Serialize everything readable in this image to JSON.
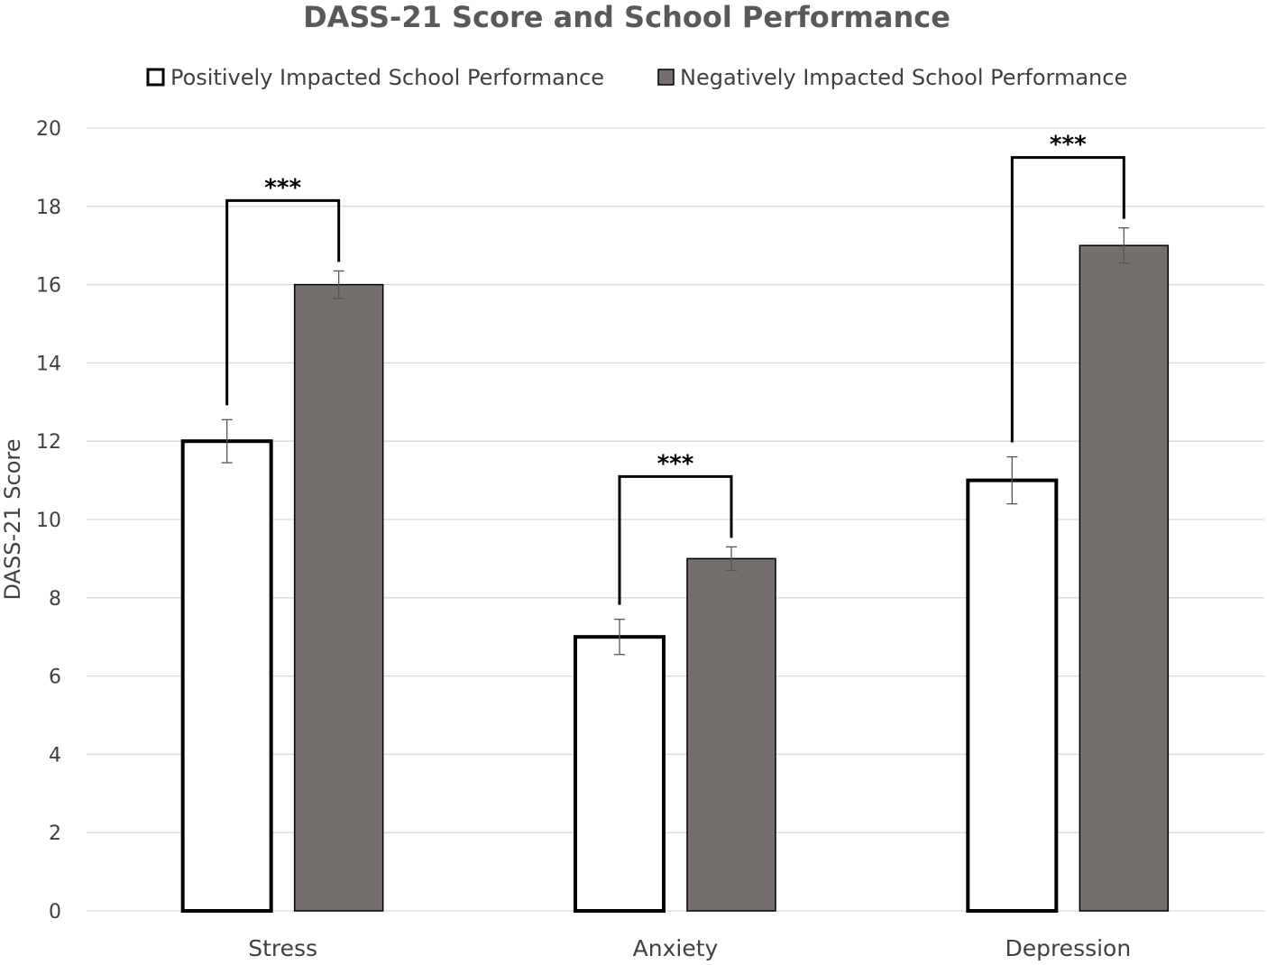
{
  "chart_data": {
    "type": "bar",
    "title": "DASS-21 Score and School Performance",
    "xlabel": "",
    "ylabel": "DASS-21 Score",
    "ylim": [
      0,
      20
    ],
    "yticks": [
      0,
      2,
      4,
      6,
      8,
      10,
      12,
      14,
      16,
      18,
      20
    ],
    "grid": true,
    "legend_position": "top",
    "categories": [
      "Stress",
      "Anxiety",
      "Depression"
    ],
    "series": [
      {
        "name": "Positively Impacted School Performance",
        "values": [
          12,
          7,
          11
        ],
        "errors": [
          0.55,
          0.45,
          0.6
        ],
        "fill": "#ffffff",
        "stroke": "#000000"
      },
      {
        "name": "Negatively Impacted School Performance",
        "values": [
          16,
          9,
          17
        ],
        "errors": [
          0.35,
          0.3,
          0.45
        ],
        "fill": "#736f6d",
        "stroke": "#000000"
      }
    ],
    "significance": [
      {
        "category": "Stress",
        "label": "***"
      },
      {
        "category": "Anxiety",
        "label": "***"
      },
      {
        "category": "Depression",
        "label": "***"
      }
    ],
    "colors": {
      "grid": "#d9d9d9",
      "text": "#404040",
      "title": "#595959"
    }
  }
}
